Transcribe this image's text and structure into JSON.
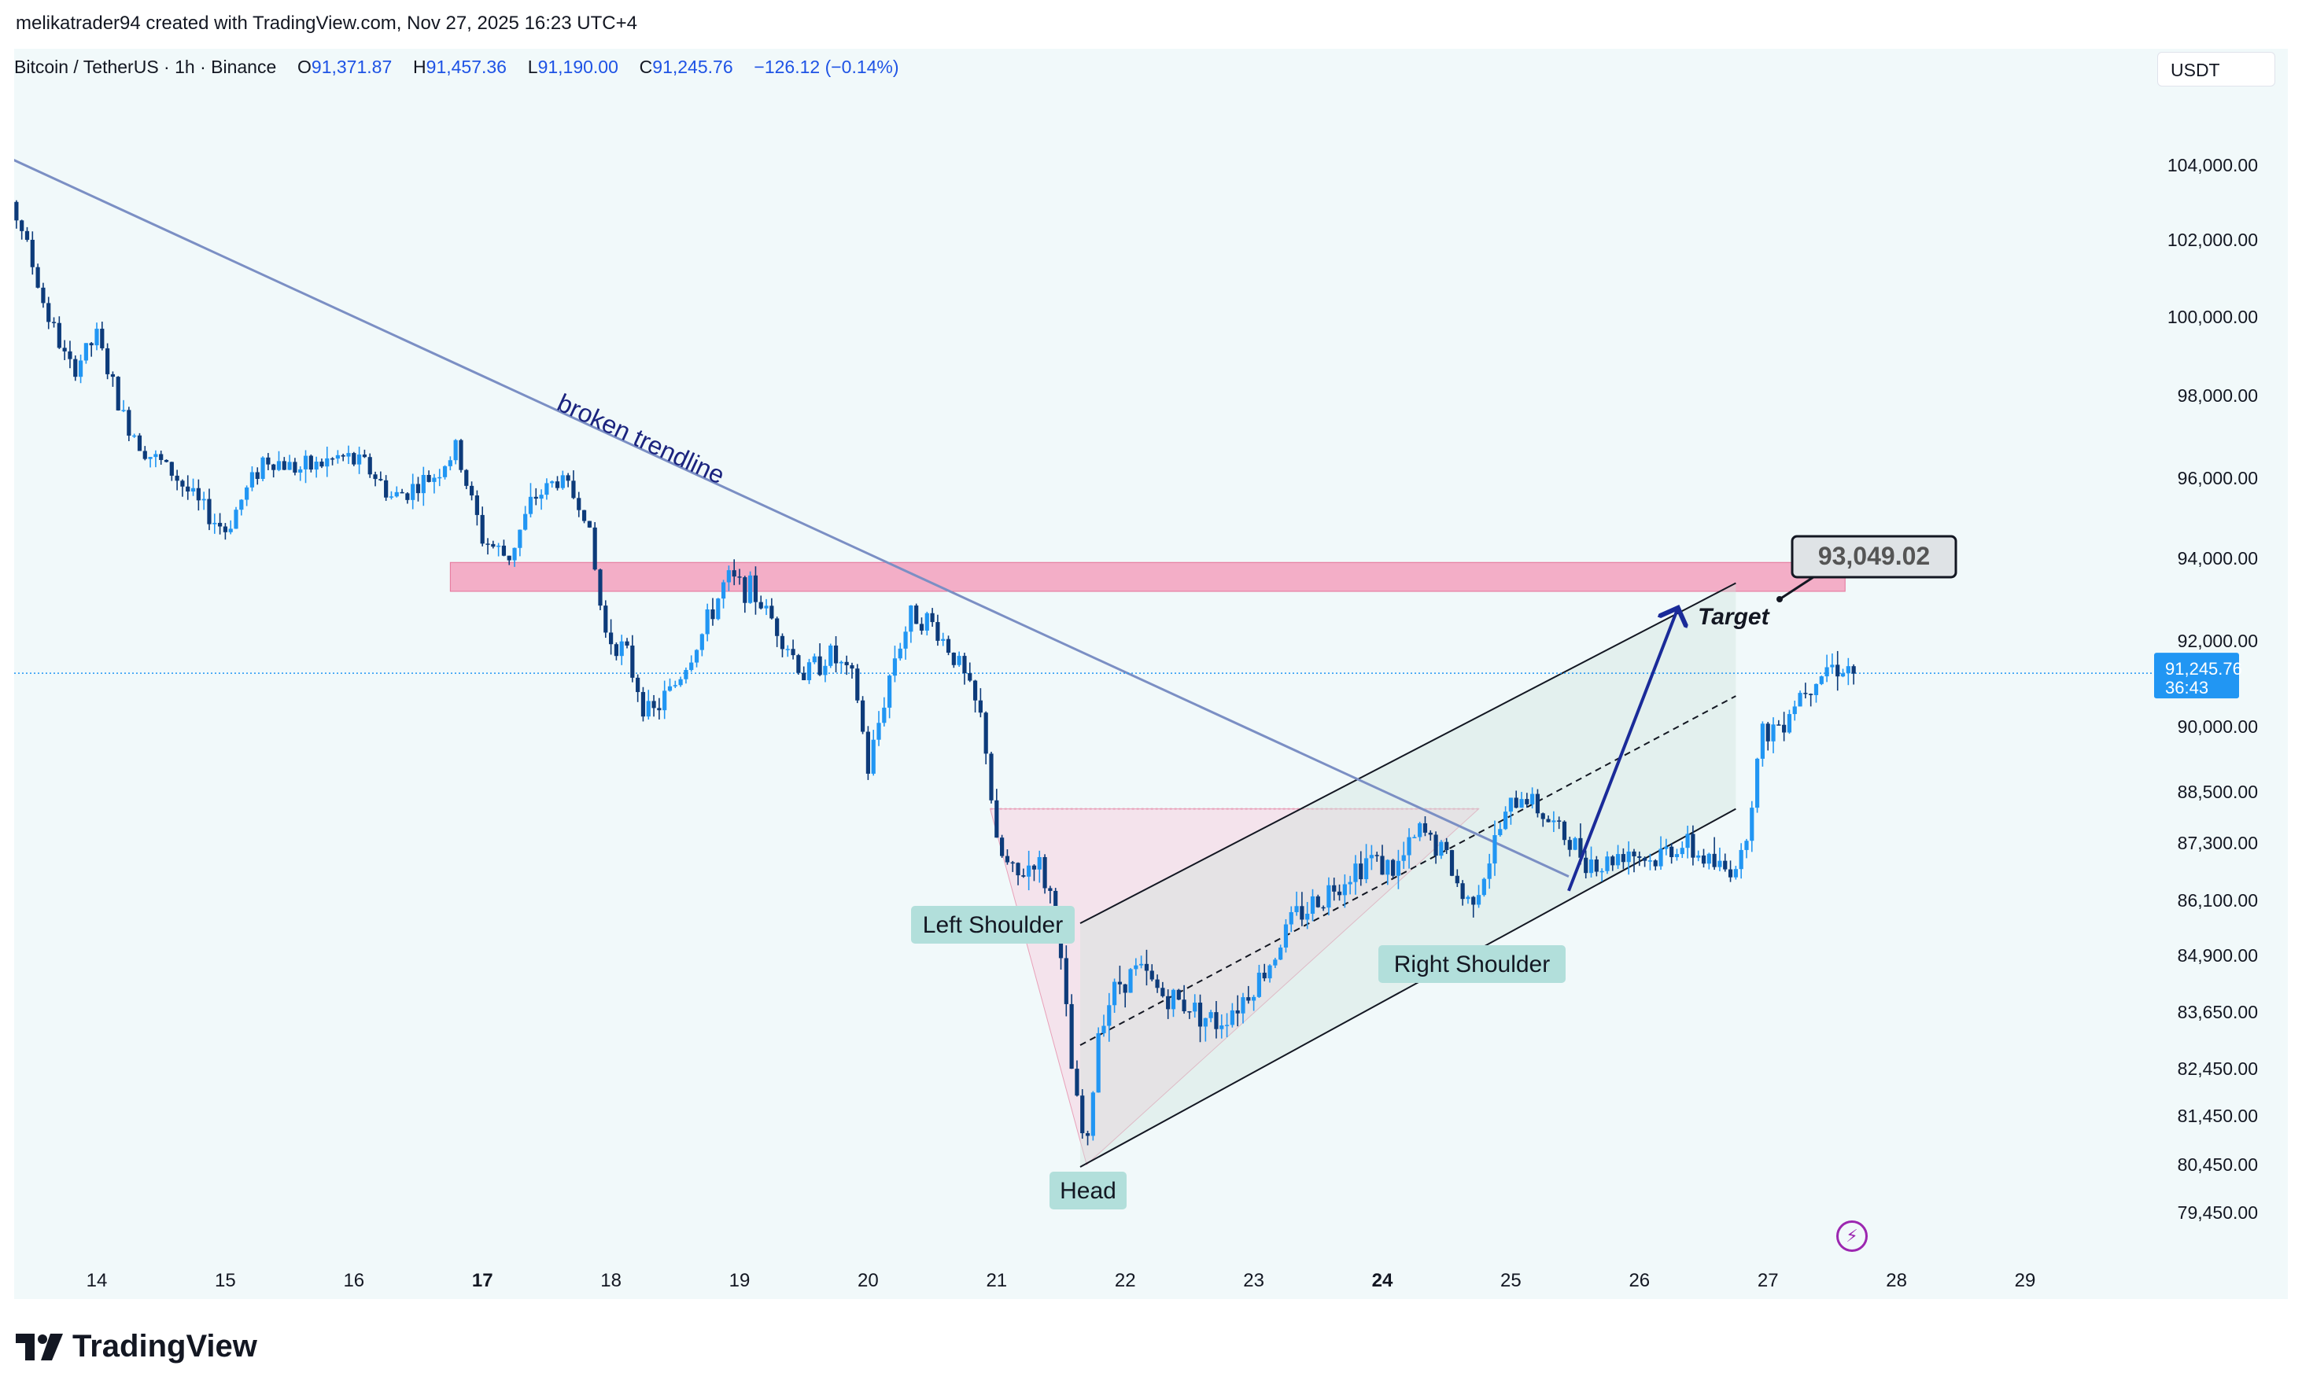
{
  "header": {
    "credit": "melikatrader94 created with TradingView.com, Nov 27, 2025 16:23 UTC+4"
  },
  "legend": {
    "symbol": "Bitcoin / TetherUS · 1h · Binance",
    "open_label": "O",
    "open": "91,371.87",
    "high_label": "H",
    "high": "91,457.36",
    "low_label": "L",
    "low": "91,190.00",
    "close_label": "C",
    "close": "91,245.76",
    "change": "−126.12 (−0.14%)"
  },
  "currency_button": "USDT",
  "price_tag": {
    "price": "91,245.76",
    "countdown": "36:43"
  },
  "footer": {
    "brand": "TradingView"
  },
  "chart_data": {
    "type": "candlestick",
    "symbol": "BTCUSDT",
    "timeframe": "1h",
    "y_axis": {
      "ticks": [
        {
          "label": "104,000.00",
          "value": 104000
        },
        {
          "label": "102,000.00",
          "value": 102000
        },
        {
          "label": "100,000.00",
          "value": 100000
        },
        {
          "label": "98,000.00",
          "value": 98000
        },
        {
          "label": "96,000.00",
          "value": 96000
        },
        {
          "label": "94,000.00",
          "value": 94000
        },
        {
          "label": "92,000.00",
          "value": 92000
        },
        {
          "label": "90,000.00",
          "value": 90000
        },
        {
          "label": "88,500.00",
          "value": 88500
        },
        {
          "label": "87,300.00",
          "value": 87300
        },
        {
          "label": "86,100.00",
          "value": 86100
        },
        {
          "label": "84,900.00",
          "value": 84900
        },
        {
          "label": "83,650.00",
          "value": 83650
        },
        {
          "label": "82,450.00",
          "value": 82450
        },
        {
          "label": "81,450.00",
          "value": 81450
        },
        {
          "label": "80,450.00",
          "value": 80450
        },
        {
          "label": "79,450.00",
          "value": 79450
        }
      ]
    },
    "x_axis": {
      "ticks": [
        {
          "label": "14",
          "day": 14,
          "bold": false
        },
        {
          "label": "15",
          "day": 15,
          "bold": false
        },
        {
          "label": "16",
          "day": 16,
          "bold": false
        },
        {
          "label": "17",
          "day": 17,
          "bold": true
        },
        {
          "label": "18",
          "day": 18,
          "bold": false
        },
        {
          "label": "19",
          "day": 19,
          "bold": false
        },
        {
          "label": "20",
          "day": 20,
          "bold": false
        },
        {
          "label": "21",
          "day": 21,
          "bold": false
        },
        {
          "label": "22",
          "day": 22,
          "bold": false
        },
        {
          "label": "23",
          "day": 23,
          "bold": false
        },
        {
          "label": "24",
          "day": 24,
          "bold": true
        },
        {
          "label": "25",
          "day": 25,
          "bold": false
        },
        {
          "label": "26",
          "day": 26,
          "bold": false
        },
        {
          "label": "27",
          "day": 27,
          "bold": false
        },
        {
          "label": "28",
          "day": 28,
          "bold": false
        },
        {
          "label": "29",
          "day": 29,
          "bold": false
        }
      ]
    },
    "price_path": [
      [
        13.0,
        102700
      ],
      [
        13.1,
        103900
      ],
      [
        13.4,
        102500
      ],
      [
        13.6,
        100200
      ],
      [
        13.8,
        98600
      ],
      [
        14.0,
        99500
      ],
      [
        14.2,
        97500
      ],
      [
        14.4,
        96600
      ],
      [
        14.6,
        96100
      ],
      [
        14.8,
        95300
      ],
      [
        15.0,
        94700
      ],
      [
        15.3,
        96500
      ],
      [
        15.6,
        96200
      ],
      [
        15.9,
        96500
      ],
      [
        16.1,
        96300
      ],
      [
        16.3,
        95500
      ],
      [
        16.6,
        96000
      ],
      [
        16.8,
        96700
      ],
      [
        17.0,
        94500
      ],
      [
        17.2,
        94000
      ],
      [
        17.4,
        95500
      ],
      [
        17.6,
        96000
      ],
      [
        17.8,
        95200
      ],
      [
        17.95,
        92200
      ],
      [
        18.1,
        91800
      ],
      [
        18.3,
        90200
      ],
      [
        18.5,
        91000
      ],
      [
        18.7,
        92100
      ],
      [
        18.9,
        93500
      ],
      [
        19.1,
        93200
      ],
      [
        19.3,
        92300
      ],
      [
        19.5,
        91200
      ],
      [
        19.7,
        91700
      ],
      [
        19.9,
        91000
      ],
      [
        20.0,
        89000
      ],
      [
        20.2,
        91600
      ],
      [
        20.35,
        92700
      ],
      [
        20.5,
        92400
      ],
      [
        20.7,
        91500
      ],
      [
        20.9,
        90000
      ],
      [
        21.0,
        87200
      ],
      [
        21.15,
        86500
      ],
      [
        21.3,
        87000
      ],
      [
        21.45,
        86000
      ],
      [
        21.6,
        82000
      ],
      [
        21.7,
        80600
      ],
      [
        21.8,
        83500
      ],
      [
        21.95,
        84300
      ],
      [
        22.1,
        84600
      ],
      [
        22.3,
        84000
      ],
      [
        22.5,
        83800
      ],
      [
        22.7,
        83400
      ],
      [
        22.9,
        83900
      ],
      [
        23.1,
        84600
      ],
      [
        23.3,
        85700
      ],
      [
        23.5,
        86100
      ],
      [
        23.7,
        86600
      ],
      [
        23.9,
        87000
      ],
      [
        24.1,
        86700
      ],
      [
        24.3,
        87600
      ],
      [
        24.5,
        87000
      ],
      [
        24.65,
        86000
      ],
      [
        24.8,
        86700
      ],
      [
        24.95,
        87900
      ],
      [
        25.1,
        88500
      ],
      [
        25.3,
        87800
      ],
      [
        25.5,
        87200
      ],
      [
        25.7,
        86800
      ],
      [
        25.9,
        87200
      ],
      [
        26.1,
        86900
      ],
      [
        26.3,
        87300
      ],
      [
        26.5,
        87000
      ],
      [
        26.65,
        86700
      ],
      [
        26.8,
        87000
      ],
      [
        26.95,
        89800
      ],
      [
        27.1,
        90100
      ],
      [
        27.25,
        90800
      ],
      [
        27.45,
        91400
      ],
      [
        27.6,
        91400
      ],
      [
        27.7,
        91250
      ]
    ],
    "last_price": 91245.76,
    "levels": {
      "resistance_zone": {
        "from": 93200,
        "to": 93900,
        "x_start_day": 16.75,
        "x_end_day": 27.6
      },
      "target_price": 93049.02,
      "neckline": 88100
    },
    "annotations": {
      "trendline_label": "broken trendline",
      "target_label": "Target",
      "target_value_label": "93,049.02",
      "left_shoulder": "Left Shoulder",
      "head": "Head",
      "right_shoulder": "Right Shoulder"
    },
    "trendline": {
      "from": {
        "day": 13.0,
        "price": 104700
      },
      "to": {
        "day": 25.45,
        "price": 86600
      }
    },
    "channel": {
      "upper": {
        "from": {
          "day": 21.65,
          "price": 85600
        },
        "to": {
          "day": 26.75,
          "price": 93400
        }
      },
      "lower": {
        "from": {
          "day": 21.65,
          "price": 80400
        },
        "to": {
          "day": 26.75,
          "price": 88100
        }
      }
    },
    "projection_arrow": {
      "from": {
        "day": 25.45,
        "price": 86300
      },
      "to": {
        "day": 26.3,
        "price": 92800
      }
    },
    "colors": {
      "up": "#2196f3",
      "down": "#0d3b7a",
      "zone": "#f48fb1",
      "trendline": "#7b8fc4",
      "price_tag": "#2196f3",
      "background": "#f1f9fa",
      "label_bg": "#b2dfdb",
      "arrow": "#1a2b99"
    }
  }
}
